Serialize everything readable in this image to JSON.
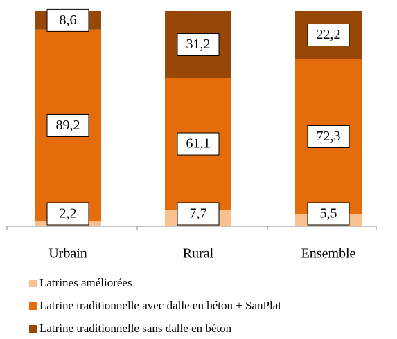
{
  "chart_data": {
    "type": "stacked_bar",
    "categories": [
      "Urbain",
      "Rural",
      "Ensemble"
    ],
    "series": [
      {
        "name": "Latrines améliorées",
        "color": "#fac090",
        "values": [
          2.2,
          7.7,
          5.5
        ],
        "value_labels": [
          "2,2",
          "7,7",
          "5,5"
        ]
      },
      {
        "name": "Latrine traditionnelle avec dalle en béton + SanPlat",
        "color": "#e46c0a",
        "values": [
          89.2,
          61.1,
          72.3
        ],
        "value_labels": [
          "89,2",
          "61,1",
          "72,3"
        ]
      },
      {
        "name": "Latrine traditionnelle sans dalle en béton",
        "color": "#974806",
        "values": [
          8.6,
          31.2,
          22.2
        ],
        "value_labels": [
          "8,6",
          "31,2",
          "22,2"
        ]
      }
    ],
    "ylim": [
      0,
      100
    ],
    "legend": "bottom"
  }
}
